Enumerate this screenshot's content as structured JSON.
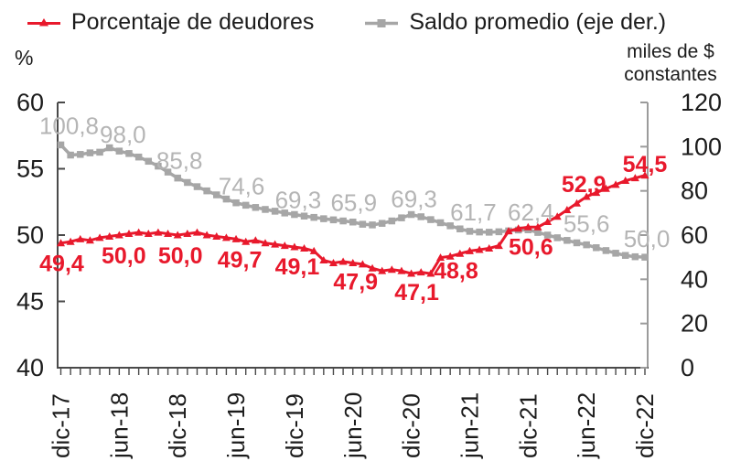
{
  "colors": {
    "red": "#e8192c",
    "gray": "#a6a6a6",
    "gray_label": "#b5b5b5",
    "axis_dark": "#4a4a4a",
    "axis_light": "#9b9b9b",
    "text": "#1c1c1c"
  },
  "legend": {
    "items": [
      {
        "label": "Porcentaje de deudores",
        "marker": "line-triangle",
        "color_key": "red"
      },
      {
        "label": "Saldo promedio (eje der.)",
        "marker": "line-square",
        "color_key": "gray"
      }
    ]
  },
  "axes": {
    "left_unit": "%",
    "right_unit_line1": "miles de $",
    "right_unit_line2": "constantes"
  },
  "chart_data": {
    "type": "line",
    "n_points": 61,
    "x_range": [
      "dic-17",
      "dic-22"
    ],
    "x_tick_label_indices": [
      0,
      6,
      12,
      18,
      24,
      30,
      36,
      42,
      48,
      54,
      60
    ],
    "x_tick_labels": [
      "dic-17",
      "jun-18",
      "dic-18",
      "jun-19",
      "dic-19",
      "jun-20",
      "dic-20",
      "jun-21",
      "dic-21",
      "jun-22",
      "dic-22"
    ],
    "left_axis": {
      "label": "%",
      "min": 40,
      "max": 60,
      "ticks": [
        60,
        55,
        50,
        45,
        40
      ]
    },
    "right_axis": {
      "label": "miles de $ constantes",
      "min": 0,
      "max": 120,
      "ticks": [
        120,
        100,
        80,
        60,
        40,
        20,
        0
      ]
    },
    "series": [
      {
        "name": "Saldo promedio (eje der.)",
        "axis": "right",
        "marker": "square",
        "color_key": "gray",
        "values": [
          100.8,
          96.2,
          96.5,
          97.2,
          97.5,
          99.5,
          98.0,
          96.9,
          95.3,
          93.4,
          91.2,
          88.5,
          85.8,
          83.8,
          81.9,
          80.0,
          78.2,
          76.3,
          74.6,
          73.5,
          72.5,
          71.6,
          70.8,
          70.0,
          69.3,
          68.6,
          68.0,
          67.4,
          66.9,
          66.4,
          65.9,
          64.9,
          64.6,
          65.3,
          66.4,
          67.8,
          69.3,
          68.3,
          67.0,
          65.6,
          64.2,
          62.8,
          61.7,
          61.4,
          61.3,
          61.5,
          61.9,
          62.3,
          62.4,
          61.2,
          60.0,
          58.8,
          57.6,
          56.5,
          55.6,
          54.3,
          53.0,
          51.8,
          50.8,
          50.2,
          50.0
        ],
        "point_labels": [
          {
            "i": 0,
            "text": "100,8",
            "dx": 9,
            "dy": -12
          },
          {
            "i": 6,
            "text": "98,0",
            "dx": 4,
            "dy": -9
          },
          {
            "i": 12,
            "text": "85,8",
            "dx": 2,
            "dy": -10
          },
          {
            "i": 18,
            "text": "74,6",
            "dx": 6,
            "dy": -9
          },
          {
            "i": 24,
            "text": "69,3",
            "dx": 4,
            "dy": -7
          },
          {
            "i": 30,
            "text": "65,9",
            "dx": 1,
            "dy": -12
          },
          {
            "i": 36,
            "text": "69,3",
            "dx": 3,
            "dy": -8
          },
          {
            "i": 42,
            "text": "61,7",
            "dx": 4,
            "dy": -12
          },
          {
            "i": 48,
            "text": "62,4",
            "dx": 3,
            "dy": -10
          },
          {
            "i": 54,
            "text": "55,6",
            "dx": 0,
            "dy": -14
          },
          {
            "i": 60,
            "text": "50,0",
            "dx": 2,
            "dy": -11
          }
        ]
      },
      {
        "name": "Porcentaje de deudores",
        "axis": "left",
        "marker": "triangle",
        "color_key": "red",
        "values": [
          49.4,
          49.5,
          49.7,
          49.6,
          49.8,
          49.9,
          50.0,
          50.1,
          50.2,
          50.1,
          50.2,
          50.1,
          50.0,
          50.1,
          50.2,
          50.0,
          49.9,
          49.8,
          49.7,
          49.5,
          49.6,
          49.4,
          49.3,
          49.2,
          49.1,
          49.0,
          48.8,
          48.1,
          47.9,
          48.0,
          47.9,
          47.8,
          47.5,
          47.3,
          47.4,
          47.3,
          47.1,
          47.2,
          47.1,
          48.3,
          48.4,
          48.6,
          48.8,
          48.9,
          49.0,
          49.2,
          50.3,
          50.5,
          50.6,
          50.6,
          51.0,
          51.4,
          51.9,
          52.4,
          52.9,
          53.2,
          53.5,
          53.8,
          54.1,
          54.3,
          54.5
        ],
        "point_labels": [
          {
            "i": 0,
            "text": "49,4",
            "dx": 1,
            "dy": 31
          },
          {
            "i": 6,
            "text": "50,0",
            "dx": 5,
            "dy": 31
          },
          {
            "i": 12,
            "text": "50,0",
            "dx": 3,
            "dy": 31
          },
          {
            "i": 18,
            "text": "49,7",
            "dx": 4,
            "dy": 31
          },
          {
            "i": 24,
            "text": "49,1",
            "dx": 3,
            "dy": 30
          },
          {
            "i": 30,
            "text": "47,9",
            "dx": 3,
            "dy": 29
          },
          {
            "i": 36,
            "text": "47,1",
            "dx": 6,
            "dy": 29
          },
          {
            "i": 42,
            "text": "48,8",
            "dx": -15,
            "dy": 30
          },
          {
            "i": 48,
            "text": "50,6",
            "dx": 3,
            "dy": 30
          },
          {
            "i": 54,
            "text": "52,9",
            "dx": -3,
            "dy": -5
          },
          {
            "i": 60,
            "text": "54,5",
            "dx": 0,
            "dy": -4
          }
        ]
      }
    ]
  }
}
